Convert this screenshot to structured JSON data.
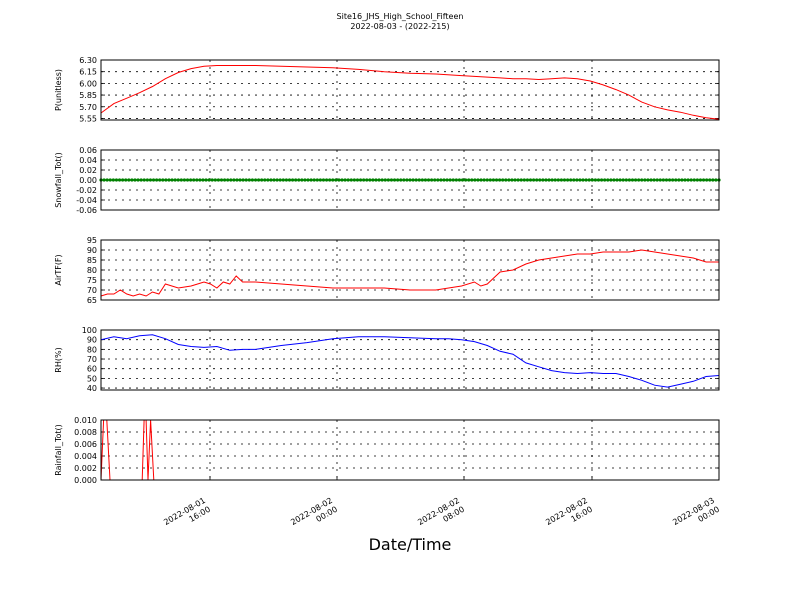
{
  "chart_title": "Site16_JHS_High_School_Fifteen",
  "chart_subtitle": "2022-08-03 - (2022-215)",
  "xlabel": "Date/Time",
  "x_ticks": [
    {
      "line1": "2022-08-01",
      "line2": "16:00"
    },
    {
      "line1": "2022-08-02",
      "line2": "00:00"
    },
    {
      "line1": "2022-08-02",
      "line2": "08:00"
    },
    {
      "line1": "2022-08-02",
      "line2": "16:00"
    },
    {
      "line1": "2022-08-03",
      "line2": "00:00"
    }
  ],
  "colors": {
    "red": "#ff0000",
    "green": "#008000",
    "blue": "#0000ff",
    "grid": "#000000"
  },
  "chart_data": [
    {
      "type": "line",
      "ylabel": "P(unitless)",
      "ylim": [
        5.53,
        6.3
      ],
      "yticks": [
        "6.30",
        "6.15",
        "6.00",
        "5.85",
        "5.70",
        "5.55"
      ],
      "ytick_values": [
        6.3,
        6.15,
        6.0,
        5.85,
        5.7,
        5.55
      ],
      "grid": true,
      "series": [
        {
          "color": "#ff0000",
          "x": [
            0,
            1,
            2,
            3,
            4,
            5,
            6,
            7,
            8,
            9,
            10,
            12,
            14,
            16,
            18,
            20,
            22,
            24,
            26,
            28,
            30,
            31,
            32,
            33,
            34,
            35,
            36,
            37,
            38,
            39,
            40,
            41,
            42,
            43,
            44,
            45,
            46,
            47,
            48
          ],
          "values": [
            5.62,
            5.74,
            5.81,
            5.88,
            5.96,
            6.06,
            6.14,
            6.19,
            6.22,
            6.23,
            6.23,
            6.23,
            6.22,
            6.21,
            6.2,
            6.18,
            6.15,
            6.13,
            6.12,
            6.1,
            6.08,
            6.07,
            6.06,
            6.06,
            6.05,
            6.06,
            6.07,
            6.06,
            6.03,
            5.98,
            5.92,
            5.85,
            5.76,
            5.7,
            5.66,
            5.63,
            5.59,
            5.56,
            5.54
          ]
        }
      ]
    },
    {
      "type": "line",
      "ylabel": "Snowfall_Tot()",
      "ylim": [
        -0.06,
        0.06
      ],
      "yticks": [
        "0.06",
        "0.04",
        "0.02",
        "0.00",
        "-0.02",
        "-0.04",
        "-0.06"
      ],
      "ytick_values": [
        0.06,
        0.04,
        0.02,
        0.0,
        -0.02,
        -0.04,
        -0.06
      ],
      "grid": true,
      "series": [
        {
          "color": "#008000",
          "constant": 0.0,
          "markers": true
        }
      ]
    },
    {
      "type": "line",
      "ylabel": "AirTF(F)",
      "ylim": [
        65,
        95
      ],
      "yticks": [
        "95",
        "90",
        "85",
        "80",
        "75",
        "70",
        "65"
      ],
      "ytick_values": [
        95,
        90,
        85,
        80,
        75,
        70,
        65
      ],
      "grid": true,
      "series": [
        {
          "color": "#ff0000",
          "x": [
            0,
            0.5,
            1,
            1.5,
            2,
            2.5,
            3,
            3.5,
            4,
            4.5,
            5,
            6,
            7,
            7.5,
            8,
            8.5,
            9,
            9.5,
            10,
            10.5,
            11,
            12,
            14,
            16,
            18,
            20,
            22,
            24,
            26,
            27,
            28,
            29,
            29.5,
            30,
            31,
            32,
            33,
            34,
            35,
            36,
            37,
            38,
            39,
            40,
            41,
            42,
            43,
            44,
            45,
            46,
            47,
            48
          ],
          "values": [
            67,
            68,
            68,
            70,
            68,
            67,
            68,
            67,
            69,
            68,
            73,
            71,
            72,
            73,
            74,
            73,
            71,
            74,
            73,
            77,
            74,
            74,
            73,
            72,
            71,
            71,
            71,
            70,
            70,
            71,
            72,
            74,
            72,
            73,
            79,
            80,
            83,
            85,
            86,
            87,
            88,
            88,
            89,
            89,
            89,
            90,
            89,
            88,
            87,
            86,
            84,
            84
          ]
        }
      ]
    },
    {
      "type": "line",
      "ylabel": "RH(%)",
      "ylim": [
        38,
        100
      ],
      "yticks": [
        "100",
        "90",
        "80",
        "70",
        "60",
        "50",
        "40"
      ],
      "ytick_values": [
        100,
        90,
        80,
        70,
        60,
        50,
        40
      ],
      "grid": true,
      "series": [
        {
          "color": "#0000ff",
          "x": [
            0,
            1,
            2,
            3,
            4,
            5,
            6,
            7,
            8,
            9,
            10,
            11,
            12,
            14,
            16,
            18,
            20,
            22,
            24,
            26,
            27,
            28,
            29,
            30,
            31,
            32,
            33,
            34,
            35,
            36,
            37,
            38,
            39,
            40,
            41,
            42,
            43,
            44,
            45,
            46,
            47,
            48
          ],
          "values": [
            90,
            93,
            91,
            94,
            95,
            91,
            85,
            83,
            82,
            83,
            79,
            80,
            80,
            84,
            87,
            91,
            93,
            93,
            92,
            91,
            91,
            90,
            88,
            84,
            78,
            75,
            66,
            62,
            58,
            56,
            55,
            56,
            55,
            55,
            52,
            48,
            43,
            41,
            44,
            47,
            52,
            53
          ]
        }
      ]
    },
    {
      "type": "line",
      "ylabel": "Rainfall_Tot()",
      "ylim": [
        0,
        0.01
      ],
      "yticks": [
        "0.010",
        "0.008",
        "0.006",
        "0.004",
        "0.002",
        "0.000"
      ],
      "ytick_values": [
        0.01,
        0.008,
        0.006,
        0.004,
        0.002,
        0.0
      ],
      "grid": true,
      "series": [
        {
          "color": "#ff0000",
          "x": [
            0,
            0.2,
            0.45,
            0.7,
            3.0,
            3.2,
            3.35,
            3.5,
            3.65,
            3.85,
            4.1,
            48
          ],
          "values": [
            0.0,
            0.01,
            0.01,
            0.0,
            0.0,
            0.0,
            0.01,
            0.01,
            0.0,
            0.01,
            0.0,
            0.0
          ]
        }
      ]
    }
  ]
}
